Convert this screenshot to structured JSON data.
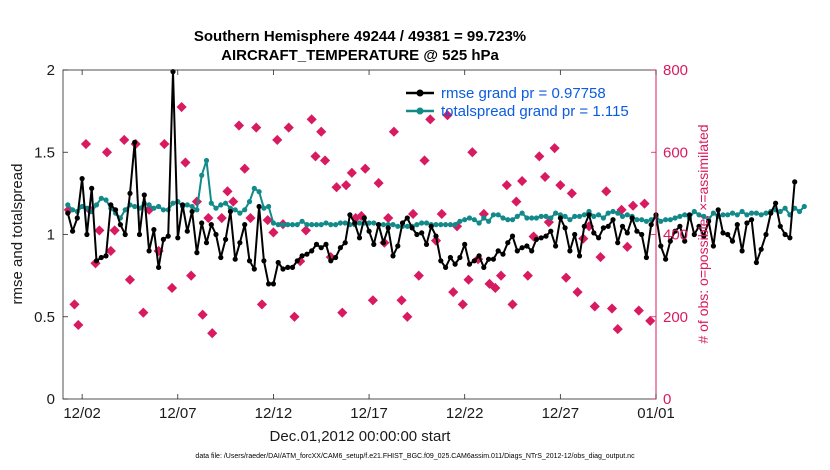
{
  "chart_data": {
    "type": "line",
    "title_line1": "Southern Hemisphere 49244 / 49381 = 99.723%",
    "title_line2": "AIRCRAFT_TEMPERATURE @ 525 hPa",
    "xlabel": "Dec.01,2012 00:00:00 start",
    "ylabel": "rmse and totalspread",
    "y2label": "# of obs: o=possible; ×=assimilated",
    "footnote": "data file: /Users/raeder/DAI/ATM_forcXX/CAM6_setup/f.e21.FHIST_BGC.f09_025.CAM6assim.011/Diags_NTrS_2012-12/obs_diag_output.nc",
    "xlim": [
      1,
      32
    ],
    "ylim": [
      0,
      2
    ],
    "y2lim": [
      0,
      800
    ],
    "x_ticks": [
      {
        "x": 2,
        "label": "12/02"
      },
      {
        "x": 7,
        "label": "12/07"
      },
      {
        "x": 12,
        "label": "12/12"
      },
      {
        "x": 17,
        "label": "12/17"
      },
      {
        "x": 22,
        "label": "12/22"
      },
      {
        "x": 27,
        "label": "12/27"
      },
      {
        "x": 32,
        "label": "01/01"
      }
    ],
    "y_ticks": [
      "0",
      "0.5",
      "1",
      "1.5",
      "2"
    ],
    "y2_ticks": [
      "0",
      "200",
      "400",
      "600",
      "800"
    ],
    "colors": {
      "rmse": "#000000",
      "spread": "#138a8a",
      "obs": "#d81b60",
      "legend_text": "#0b5ce0",
      "right_axis": "#d81b60"
    },
    "series": [
      {
        "name": "rmse grand pr = 0.97758",
        "key": "rmse",
        "x_start": 1.25,
        "x_step": 0.25,
        "values": [
          1.13,
          1.02,
          1.1,
          1.34,
          1.0,
          1.28,
          0.84,
          0.86,
          0.87,
          1.18,
          1.15,
          1.06,
          1.0,
          1.25,
          1.56,
          1.0,
          1.24,
          0.9,
          1.03,
          0.8,
          0.97,
          0.99,
          1.99,
          0.98,
          1.18,
          1.02,
          1.14,
          0.89,
          1.07,
          0.95,
          1.06,
          1.0,
          0.86,
          0.97,
          1.14,
          0.85,
          0.95,
          1.06,
          0.84,
          0.79,
          1.17,
          0.84,
          0.7,
          0.7,
          0.83,
          0.79,
          0.8,
          0.8,
          0.84,
          0.87,
          0.88,
          0.9,
          0.94,
          0.92,
          0.94,
          0.84,
          0.86,
          0.92,
          0.95,
          1.12,
          1.07,
          0.98,
          1.1,
          1.02,
          0.94,
          1.06,
          0.95,
          1.04,
          0.87,
          0.93,
          1.07,
          1.1,
          1.04,
          1.0,
          1.01,
          0.94,
          1.05,
          0.99,
          0.84,
          0.8,
          0.86,
          0.82,
          0.86,
          0.94,
          0.82,
          0.84,
          0.87,
          0.8,
          0.85,
          0.85,
          0.9,
          0.88,
          0.95,
          0.99,
          0.9,
          0.92,
          0.93,
          0.9,
          0.97,
          0.98,
          0.99,
          1.02,
          0.93,
          1.1,
          1.04,
          0.9,
          1.0,
          0.87,
          1.05,
          1.12,
          1.01,
          0.98,
          1.04,
          1.05,
          1.09,
          0.95,
          1.05,
          1.01,
          1.1,
          1.02,
          1.0,
          0.86,
          1.06,
          1.12,
          0.93,
          0.85,
          0.96,
          1.02,
          1.05,
          0.96,
          1.12,
          1.0,
          1.05,
          0.99,
          1.08,
          0.93,
          1.15,
          1.01,
          1.0,
          0.96,
          1.06,
          0.9,
          1.07,
          1.09,
          0.83,
          0.91,
          1.0,
          1.13,
          1.19,
          1.05,
          1.0,
          0.98,
          1.32
        ]
      },
      {
        "name": "totalspread grand pr = 1.115",
        "key": "spread",
        "x_start": 1.25,
        "x_step": 0.25,
        "values": [
          1.18,
          1.15,
          1.14,
          1.17,
          1.16,
          1.14,
          1.18,
          1.22,
          1.21,
          1.16,
          1.13,
          1.1,
          1.15,
          1.18,
          1.17,
          1.16,
          1.19,
          1.18,
          1.16,
          1.17,
          1.15,
          1.15,
          1.19,
          1.2,
          1.17,
          1.18,
          1.17,
          1.15,
          1.36,
          1.45,
          1.19,
          1.16,
          1.18,
          1.19,
          1.16,
          1.15,
          1.13,
          1.15,
          1.2,
          1.28,
          1.26,
          1.16,
          1.17,
          1.07,
          1.06,
          1.06,
          1.06,
          1.06,
          1.06,
          1.08,
          1.06,
          1.06,
          1.06,
          1.06,
          1.07,
          1.06,
          1.06,
          1.07,
          1.07,
          1.06,
          1.06,
          1.07,
          1.07,
          1.07,
          1.07,
          1.06,
          1.06,
          1.06,
          1.06,
          1.05,
          1.05,
          1.05,
          1.05,
          1.06,
          1.07,
          1.07,
          1.06,
          1.06,
          1.06,
          1.06,
          1.06,
          1.06,
          1.08,
          1.09,
          1.1,
          1.09,
          1.07,
          1.1,
          1.08,
          1.12,
          1.12,
          1.1,
          1.09,
          1.09,
          1.11,
          1.13,
          1.1,
          1.1,
          1.1,
          1.11,
          1.11,
          1.1,
          1.13,
          1.12,
          1.11,
          1.09,
          1.11,
          1.11,
          1.12,
          1.14,
          1.11,
          1.12,
          1.1,
          1.13,
          1.14,
          1.13,
          1.11,
          1.12,
          1.11,
          1.09,
          1.09,
          1.08,
          1.09,
          1.11,
          1.08,
          1.09,
          1.09,
          1.1,
          1.11,
          1.12,
          1.1,
          1.14,
          1.12,
          1.11,
          1.09,
          1.13,
          1.11,
          1.12,
          1.12,
          1.13,
          1.12,
          1.14,
          1.12,
          1.13,
          1.13,
          1.12,
          1.13,
          1.14,
          1.15,
          1.14,
          1.16,
          1.12,
          1.16,
          1.14,
          1.17
        ]
      },
      {
        "name": "# of obs (possible / assimilated)",
        "key": "obs",
        "axis": "right",
        "x": [
          1.3,
          1.6,
          1.8,
          2.2,
          2.4,
          2.7,
          2.9,
          3.3,
          3.5,
          3.7,
          4.2,
          4.5,
          4.8,
          5.2,
          5.5,
          6.0,
          6.3,
          6.7,
          7.2,
          7.4,
          7.7,
          8.0,
          8.3,
          8.6,
          8.8,
          9.3,
          9.6,
          9.9,
          10.2,
          10.5,
          10.8,
          11.1,
          11.4,
          11.7,
          12.0,
          12.2,
          12.5,
          12.8,
          13.1,
          13.4,
          13.7,
          14.0,
          14.2,
          14.5,
          14.7,
          15.0,
          15.3,
          15.6,
          15.8,
          16.1,
          16.3,
          16.6,
          16.8,
          17.2,
          17.5,
          17.8,
          18.0,
          18.3,
          18.7,
          19.0,
          19.3,
          19.6,
          19.9,
          20.2,
          20.5,
          20.8,
          21.1,
          21.4,
          21.6,
          21.9,
          22.2,
          22.4,
          22.7,
          23.0,
          23.3,
          23.6,
          23.9,
          24.2,
          24.5,
          24.7,
          25.0,
          25.3,
          25.6,
          25.9,
          26.2,
          26.4,
          26.7,
          27.0,
          27.3,
          27.6,
          27.9,
          28.2,
          28.5,
          28.8,
          29.1,
          29.4,
          29.7,
          30.0,
          30.2,
          30.5,
          30.8,
          31.1,
          31.4,
          31.7
        ],
        "values": [
          460,
          230,
          180,
          620,
          460,
          330,
          410,
          600,
          360,
          410,
          630,
          290,
          620,
          210,
          460,
          360,
          620,
          270,
          710,
          575,
          300,
          480,
          205,
          440,
          160,
          440,
          505,
          480,
          665,
          560,
          440,
          660,
          230,
          435,
          405,
          630,
          425,
          660,
          200,
          335,
          410,
          680,
          590,
          650,
          580,
          345,
          515,
          210,
          520,
          550,
          440,
          445,
          560,
          240,
          525,
          380,
          440,
          650,
          240,
          200,
          450,
          300,
          580,
          680,
          385,
          450,
          690,
          260,
          420,
          230,
          290,
          600,
          340,
          450,
          280,
          270,
          300,
          520,
          230,
          480,
          530,
          300,
          395,
          590,
          540,
          430,
          610,
          520,
          295,
          500,
          260,
          390,
          420,
          225,
          345,
          505,
          220,
          170,
          460,
          370,
          470,
          215,
          475,
          190
        ]
      }
    ]
  }
}
